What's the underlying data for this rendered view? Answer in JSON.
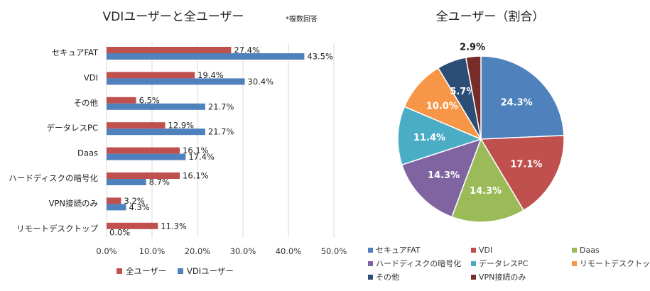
{
  "chart_data": [
    {
      "type": "bar",
      "orientation": "horizontal",
      "title": "VDIユーザーと全ユーザー",
      "note": "*複数回答",
      "categories": [
        "セキュアFAT",
        "VDI",
        "その他",
        "データレスPC",
        "Daas",
        "ハードディスクの暗号化",
        "VPN接続のみ",
        "リモートデスクトップ"
      ],
      "series": [
        {
          "name": "全ユーザー",
          "values": [
            27.4,
            19.4,
            6.5,
            12.9,
            16.1,
            16.1,
            3.2,
            11.3
          ],
          "color": "#C0504D"
        },
        {
          "name": "VDIユーザー",
          "values": [
            43.5,
            30.4,
            21.7,
            21.7,
            17.4,
            8.7,
            4.3,
            0.0
          ],
          "color": "#4F81BD"
        }
      ],
      "value_labels": [
        [
          "27.4%",
          "19.4%",
          "6.5%",
          "12.9%",
          "16.1%",
          "16.1%",
          "3.2%",
          "11.3%"
        ],
        [
          "43.5%",
          "30.4%",
          "21.7%",
          "21.7%",
          "17.4%",
          "8.7%",
          "4.3%",
          "0.0%"
        ]
      ],
      "xlim": [
        0,
        50
      ],
      "xticks": [
        "0.0%",
        "10.0%",
        "20.0%",
        "30.0%",
        "40.0%",
        "50.0%"
      ],
      "grid": true,
      "legend": "bottom"
    },
    {
      "type": "pie",
      "title": "全ユーザー（割合）",
      "slices": [
        {
          "label": "セキュアFAT",
          "value": 24.3,
          "text": "24.3%",
          "color": "#4F81BD"
        },
        {
          "label": "VDI",
          "value": 17.1,
          "text": "17.1%",
          "color": "#C0504D"
        },
        {
          "label": "Daas",
          "value": 14.3,
          "text": "14.3%",
          "color": "#9BBB59"
        },
        {
          "label": "ハードディスクの暗号化",
          "value": 14.3,
          "text": "14.3%",
          "color": "#8064A2"
        },
        {
          "label": "データレスPC",
          "value": 11.4,
          "text": "11.4%",
          "color": "#4BACC6"
        },
        {
          "label": "リモートデスクトップ",
          "value": 10.0,
          "text": "10.0%",
          "color": "#F79646"
        },
        {
          "label": "その他",
          "value": 5.7,
          "text": "5.7%",
          "color": "#2C4D75"
        },
        {
          "label": "VPN接続のみ",
          "value": 2.9,
          "text": "2.9%",
          "color": "#772C2A"
        }
      ],
      "legend": "bottom"
    }
  ]
}
